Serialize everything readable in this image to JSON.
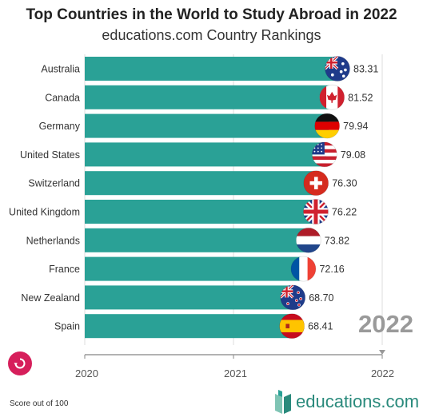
{
  "colors": {
    "bar": "#2aa196",
    "accent": "#d61f5b",
    "brand": "#2a8a7c"
  },
  "header": {
    "title": "Top Countries in the World to Study Abroad in 2022",
    "subtitle": "educations.com Country Rankings"
  },
  "controls": {
    "replay_icon": "replay-icon"
  },
  "current_year": "2022",
  "footnote": "Score out of 100",
  "brand": {
    "name": "educations.com",
    "icon": "book-logo-icon"
  },
  "chart_data": {
    "type": "bar",
    "orientation": "horizontal",
    "title": "Top Countries in the World to Study Abroad in 2022",
    "subtitle": "educations.com Country Rankings",
    "categories": [
      "Australia",
      "Canada",
      "Germany",
      "United States",
      "Switzerland",
      "United Kingdom",
      "Netherlands",
      "France",
      "New Zealand",
      "Spain"
    ],
    "values": [
      83.31,
      81.52,
      79.94,
      79.08,
      76.3,
      76.22,
      73.82,
      72.16,
      68.7,
      68.41
    ],
    "value_labels": [
      "83.31",
      "81.52",
      "79.94",
      "79.08",
      "76.30",
      "76.22",
      "73.82",
      "72.16",
      "68.70",
      "68.41"
    ],
    "flags": [
      "australia-flag-icon",
      "canada-flag-icon",
      "germany-flag-icon",
      "usa-flag-icon",
      "switzerland-flag-icon",
      "uk-flag-icon",
      "netherlands-flag-icon",
      "france-flag-icon",
      "new-zealand-flag-icon",
      "spain-flag-icon"
    ],
    "xlim": [
      0,
      83.31
    ],
    "timeline": {
      "ticks": [
        "2020",
        "2021",
        "2022"
      ],
      "current": "2022"
    },
    "grid": true,
    "legend": "none",
    "note": "Score out of 100"
  }
}
